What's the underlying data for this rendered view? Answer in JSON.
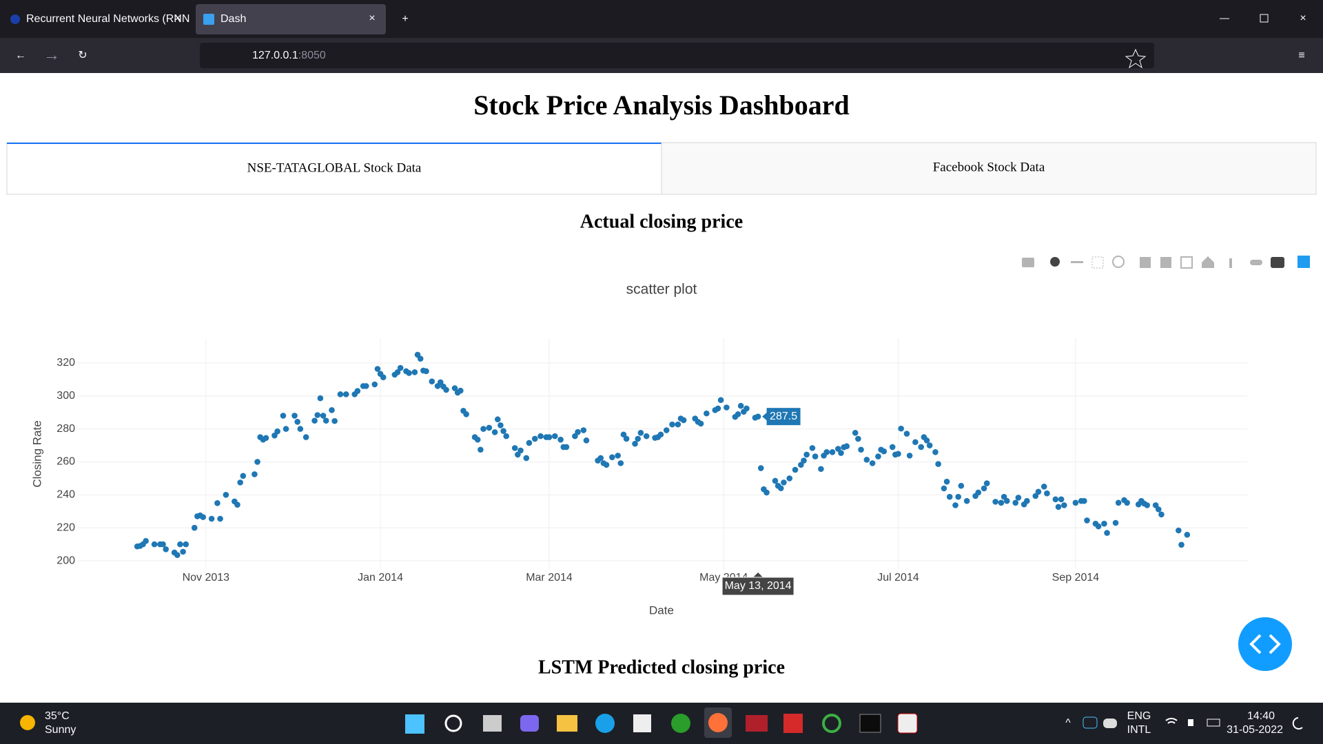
{
  "browser": {
    "tabs": [
      "Recurrent Neural Networks (RNN",
      "Dash"
    ],
    "url_host": "127.0.0.1",
    "url_port": ":8050"
  },
  "page": {
    "title": "Stock Price Analysis Dashboard",
    "tabs": [
      "NSE-TATAGLOBAL Stock Data",
      "Facebook Stock Data"
    ],
    "section_titles": [
      "Actual closing price",
      "LSTM Predicted closing price"
    ]
  },
  "chart_data": {
    "type": "scatter",
    "title": "scatter plot",
    "x_label": "Date",
    "y_label": "Closing Rate",
    "color": "#1f77b4",
    "grid": true,
    "xlim": [
      "2013-09-17",
      "2014-10-31"
    ],
    "ylim": [
      195,
      335
    ],
    "xticks": [
      {
        "value": "2013-11-01",
        "label": "Nov 2013"
      },
      {
        "value": "2014-01-01",
        "label": "Jan 2014"
      },
      {
        "value": "2014-03-01",
        "label": "Mar 2014"
      },
      {
        "value": "2014-05-01",
        "label": "May 2014"
      },
      {
        "value": "2014-07-01",
        "label": "Jul 2014"
      },
      {
        "value": "2014-09-01",
        "label": "Sep 2014"
      }
    ],
    "yticks": [
      200,
      220,
      240,
      260,
      280,
      300,
      320
    ],
    "hover": {
      "x": {
        "value": "2014-05-13",
        "label": "May 13, 2014"
      },
      "y": 287.5
    },
    "x": [
      "2013-10-08",
      "2013-10-09",
      "2013-10-10",
      "2013-10-11",
      "2013-10-14",
      "2013-10-16",
      "2013-10-17",
      "2013-10-18",
      "2013-10-21",
      "2013-10-22",
      "2013-10-23",
      "2013-10-24",
      "2013-10-25",
      "2013-10-28",
      "2013-10-29",
      "2013-10-30",
      "2013-10-31",
      "2013-11-03",
      "2013-11-05",
      "2013-11-06",
      "2013-11-08",
      "2013-11-11",
      "2013-11-12",
      "2013-11-13",
      "2013-11-14",
      "2013-11-18",
      "2013-11-19",
      "2013-11-20",
      "2013-11-21",
      "2013-11-22",
      "2013-11-25",
      "2013-11-26",
      "2013-11-28",
      "2013-11-29",
      "2013-12-02",
      "2013-12-03",
      "2013-12-04",
      "2013-12-06",
      "2013-12-09",
      "2013-12-10",
      "2013-12-11",
      "2013-12-12",
      "2013-12-13",
      "2013-12-15",
      "2013-12-16",
      "2013-12-18",
      "2013-12-20",
      "2013-12-23",
      "2013-12-24",
      "2013-12-26",
      "2013-12-27",
      "2013-12-30",
      "2013-12-31",
      "2014-01-01",
      "2014-01-02",
      "2014-01-06",
      "2014-01-07",
      "2014-01-08",
      "2014-01-10",
      "2014-01-11",
      "2014-01-13",
      "2014-01-14",
      "2014-01-15",
      "2014-01-16",
      "2014-01-17",
      "2014-01-19",
      "2014-01-21",
      "2014-01-22",
      "2014-01-23",
      "2014-01-24",
      "2014-01-27",
      "2014-01-28",
      "2014-01-29",
      "2014-01-30",
      "2014-01-31",
      "2014-02-03",
      "2014-02-04",
      "2014-02-05",
      "2014-02-06",
      "2014-02-08",
      "2014-02-10",
      "2014-02-11",
      "2014-02-12",
      "2014-02-13",
      "2014-02-14",
      "2014-02-17",
      "2014-02-18",
      "2014-02-19",
      "2014-02-21",
      "2014-02-22",
      "2014-02-24",
      "2014-02-26",
      "2014-02-28",
      "2014-03-01",
      "2014-03-03",
      "2014-03-05",
      "2014-03-06",
      "2014-03-07",
      "2014-03-10",
      "2014-03-11",
      "2014-03-13",
      "2014-03-14",
      "2014-03-18",
      "2014-03-19",
      "2014-03-20",
      "2014-03-21",
      "2014-03-23",
      "2014-03-25",
      "2014-03-26",
      "2014-03-27",
      "2014-03-28",
      "2014-03-31",
      "2014-04-01",
      "2014-04-02",
      "2014-04-04",
      "2014-04-07",
      "2014-04-08",
      "2014-04-09",
      "2014-04-11",
      "2014-04-13",
      "2014-04-15",
      "2014-04-16",
      "2014-04-17",
      "2014-04-21",
      "2014-04-22",
      "2014-04-23",
      "2014-04-25",
      "2014-04-28",
      "2014-04-29",
      "2014-04-30",
      "2014-05-02",
      "2014-05-05",
      "2014-05-06",
      "2014-05-07",
      "2014-05-08",
      "2014-05-09",
      "2014-05-12",
      "2014-05-13",
      "2014-05-14",
      "2014-05-15",
      "2014-05-16",
      "2014-05-19",
      "2014-05-20",
      "2014-05-21",
      "2014-05-22",
      "2014-05-24",
      "2014-05-26",
      "2014-05-28",
      "2014-05-29",
      "2014-05-30",
      "2014-06-01",
      "2014-06-02",
      "2014-06-04",
      "2014-06-05",
      "2014-06-06",
      "2014-06-08",
      "2014-06-10",
      "2014-06-11",
      "2014-06-12",
      "2014-06-13",
      "2014-06-16",
      "2014-06-17",
      "2014-06-18",
      "2014-06-20",
      "2014-06-22",
      "2014-06-24",
      "2014-06-25",
      "2014-06-26",
      "2014-06-29",
      "2014-06-30",
      "2014-07-01",
      "2014-07-02",
      "2014-07-04",
      "2014-07-05",
      "2014-07-07",
      "2014-07-09",
      "2014-07-10",
      "2014-07-11",
      "2014-07-12",
      "2014-07-14",
      "2014-07-15",
      "2014-07-17",
      "2014-07-18",
      "2014-07-19",
      "2014-07-21",
      "2014-07-22",
      "2014-07-23",
      "2014-07-25",
      "2014-07-28",
      "2014-07-29",
      "2014-07-31",
      "2014-08-01",
      "2014-08-04",
      "2014-08-06",
      "2014-08-07",
      "2014-08-08",
      "2014-08-11",
      "2014-08-12",
      "2014-08-14",
      "2014-08-15",
      "2014-08-18",
      "2014-08-19",
      "2014-08-21",
      "2014-08-22",
      "2014-08-25",
      "2014-08-26",
      "2014-08-27",
      "2014-08-28",
      "2014-09-01",
      "2014-09-03",
      "2014-09-04",
      "2014-09-05",
      "2014-09-08",
      "2014-09-09",
      "2014-09-11",
      "2014-09-12",
      "2014-09-15",
      "2014-09-16",
      "2014-09-18",
      "2014-09-19",
      "2014-09-23",
      "2014-09-24",
      "2014-09-25",
      "2014-09-26",
      "2014-09-29",
      "2014-09-30",
      "2014-10-01",
      "2014-10-07",
      "2014-10-08",
      "2014-10-10"
    ],
    "values": [
      208.7,
      209,
      210,
      212,
      210,
      210,
      210,
      207,
      205,
      203.5,
      210,
      205.5,
      210,
      220,
      227,
      227.5,
      226.5,
      225.5,
      235,
      225.5,
      240,
      236,
      234,
      247.5,
      251.5,
      252.5,
      260,
      275,
      273.5,
      274.5,
      276,
      278.5,
      288,
      280,
      288,
      284.3,
      280,
      275,
      285,
      288.4,
      298.6,
      288,
      285,
      291.4,
      284.8,
      301,
      301,
      301,
      303,
      306,
      306,
      307,
      316.4,
      313.4,
      311.3,
      312.9,
      314.4,
      317,
      315,
      313.9,
      314.4,
      325,
      322.6,
      315.4,
      315,
      308.8,
      306,
      308.3,
      305.7,
      303.7,
      304.7,
      302,
      303.2,
      291,
      288.9,
      275,
      273.5,
      267.4,
      280,
      280.7,
      278,
      285.8,
      282.2,
      278.7,
      275.6,
      268.4,
      264.4,
      266.9,
      262.3,
      271.5,
      274,
      275.6,
      275,
      275,
      275.6,
      273.5,
      269,
      269,
      275.6,
      278.1,
      279.2,
      273,
      260.8,
      262.3,
      259.2,
      258.2,
      262.8,
      263.8,
      259.2,
      276.6,
      274,
      271,
      274,
      277.6,
      275.6,
      274.6,
      275,
      276.6,
      279.2,
      282.7,
      282.7,
      286.3,
      285.3,
      286.3,
      284.3,
      283.2,
      289.4,
      291.4,
      292.4,
      297.5,
      293,
      287.3,
      288.9,
      294,
      290.4,
      292.4,
      286.8,
      287.5,
      256.2,
      243.4,
      241.4,
      248.5,
      245.5,
      244,
      247.5,
      250,
      255.2,
      258.2,
      260.8,
      264.4,
      268.4,
      263.3,
      255.7,
      263.8,
      265.9,
      265.9,
      267.9,
      265.4,
      268.9,
      269.5,
      277.6,
      274,
      267.4,
      261.3,
      259.2,
      263.3,
      267.4,
      266.4,
      269,
      264.4,
      264.9,
      280.2,
      277.1,
      263.8,
      272,
      269,
      275,
      273,
      270,
      265.9,
      258.7,
      243.9,
      248,
      238.8,
      233.7,
      238.8,
      245.5,
      236.3,
      239.3,
      241.4,
      243.9,
      247,
      235.8,
      235.2,
      238.8,
      236.3,
      235.2,
      238.3,
      234.2,
      236.3,
      239.3,
      241.9,
      245,
      240.9,
      237.3,
      232.7,
      237.3,
      233.7,
      235.2,
      236.3,
      236.3,
      224.5,
      222.5,
      220.9,
      222.5,
      216.9,
      223,
      235.2,
      236.8,
      235.2,
      234.2,
      236.3,
      234.7,
      233.7,
      233.7,
      231.2,
      228.1,
      218.4,
      209.7,
      215.8
    ]
  },
  "taskbar": {
    "weather_temp": "35°C",
    "weather_desc": "Sunny",
    "lang": [
      "ENG",
      "INTL"
    ],
    "time": "14:40",
    "date": "31-05-2022"
  }
}
